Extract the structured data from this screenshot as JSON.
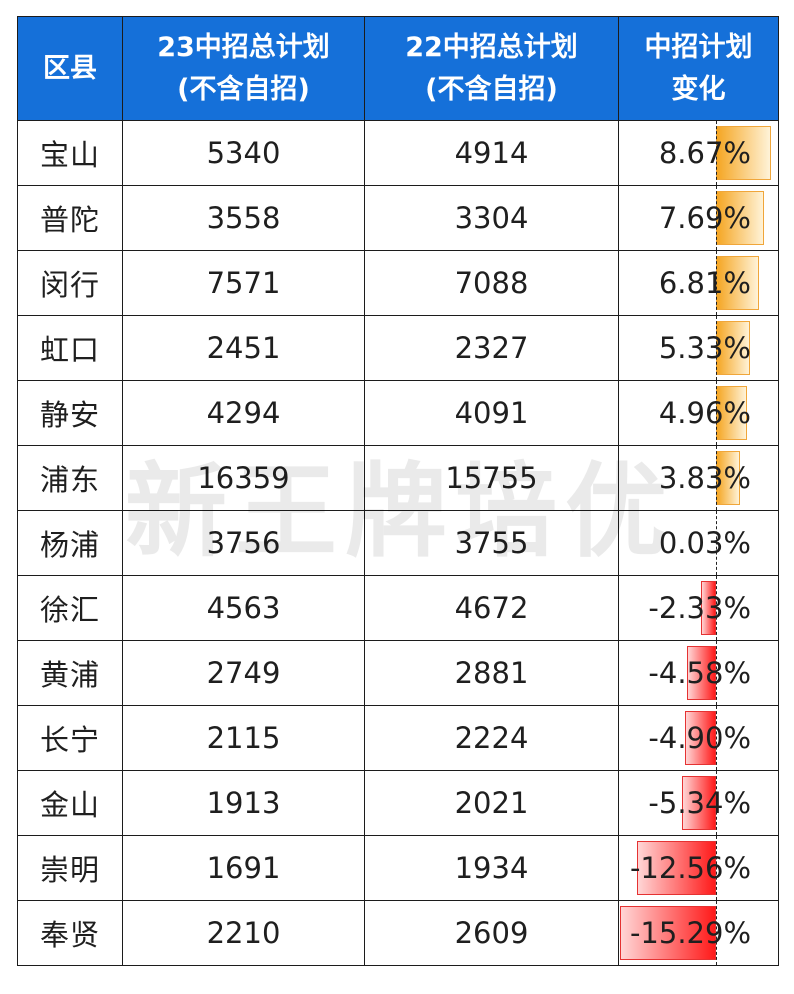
{
  "colors": {
    "header_bg": "#1570d9",
    "positive_bar_start": "#fff3d8",
    "positive_bar_end": "#f5a623",
    "negative_bar_start": "#ff1a1a",
    "negative_bar_end": "#ffd6d6"
  },
  "watermark": "新王牌培优",
  "chart_data": {
    "type": "table",
    "columns": [
      {
        "line1": "区县",
        "line2": ""
      },
      {
        "line1": "23中招总计划",
        "line2": "(不含自招)"
      },
      {
        "line1": "22中招总计划",
        "line2": "(不含自招)"
      },
      {
        "line1": "中招计划",
        "line2": "变化"
      }
    ],
    "rows": [
      {
        "region": "宝山",
        "plan_23": "5340",
        "plan_22": "4914",
        "change_label": "8.67%",
        "change": 8.67
      },
      {
        "region": "普陀",
        "plan_23": "3558",
        "plan_22": "3304",
        "change_label": "7.69%",
        "change": 7.69
      },
      {
        "region": "闵行",
        "plan_23": "7571",
        "plan_22": "7088",
        "change_label": "6.81%",
        "change": 6.81
      },
      {
        "region": "虹口",
        "plan_23": "2451",
        "plan_22": "2327",
        "change_label": "5.33%",
        "change": 5.33
      },
      {
        "region": "静安",
        "plan_23": "4294",
        "plan_22": "4091",
        "change_label": "4.96%",
        "change": 4.96
      },
      {
        "region": "浦东",
        "plan_23": "16359",
        "plan_22": "15755",
        "change_label": "3.83%",
        "change": 3.83
      },
      {
        "region": "杨浦",
        "plan_23": "3756",
        "plan_22": "3755",
        "change_label": "0.03%",
        "change": 0.03
      },
      {
        "region": "徐汇",
        "plan_23": "4563",
        "plan_22": "4672",
        "change_label": "-2.33%",
        "change": -2.33
      },
      {
        "region": "黄浦",
        "plan_23": "2749",
        "plan_22": "2881",
        "change_label": "-4.58%",
        "change": -4.58
      },
      {
        "region": "长宁",
        "plan_23": "2115",
        "plan_22": "2224",
        "change_label": "-4.90%",
        "change": -4.9
      },
      {
        "region": "金山",
        "plan_23": "1913",
        "plan_22": "2021",
        "change_label": "-5.34%",
        "change": -5.34
      },
      {
        "region": "崇明",
        "plan_23": "1691",
        "plan_22": "1934",
        "change_label": "-12.56%",
        "change": -12.56
      },
      {
        "region": "奉贤",
        "plan_23": "2210",
        "plan_22": "2609",
        "change_label": "-15.29%",
        "change": -15.29
      }
    ]
  }
}
